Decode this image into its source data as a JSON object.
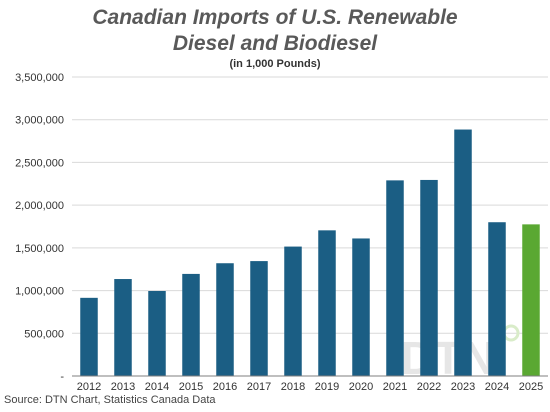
{
  "chart_data": {
    "type": "bar",
    "title_line1": "Canadian Imports of U.S. Renewable",
    "title_line2": "Diesel and Biodiesel",
    "subtitle": "(in 1,000 Pounds)",
    "source": "Source: DTN Chart, Statistics Canada Data",
    "watermark": "DTN",
    "categories": [
      "2012",
      "2013",
      "2014",
      "2015",
      "2016",
      "2017",
      "2018",
      "2019",
      "2020",
      "2021",
      "2022",
      "2023",
      "2024",
      "2025"
    ],
    "values": [
      915000,
      1135000,
      995000,
      1195000,
      1320000,
      1345000,
      1515000,
      1705000,
      1610000,
      2290000,
      2295000,
      2885000,
      1800000,
      1775000
    ],
    "ylim": [
      0,
      3500000
    ],
    "yticks": [
      0,
      500000,
      1000000,
      1500000,
      2000000,
      2500000,
      3000000,
      3500000
    ],
    "ytick_labels": [
      "-",
      "500,000",
      "1,000,000",
      "1,500,000",
      "2,000,000",
      "2,500,000",
      "3,000,000",
      "3,500,000"
    ],
    "grid": true,
    "colors": {
      "bar": "#1b5e84",
      "highlight": "#5aa832",
      "grid": "#d9d9d9",
      "axis": "#7f7f7f"
    },
    "highlight_category": "2025"
  }
}
